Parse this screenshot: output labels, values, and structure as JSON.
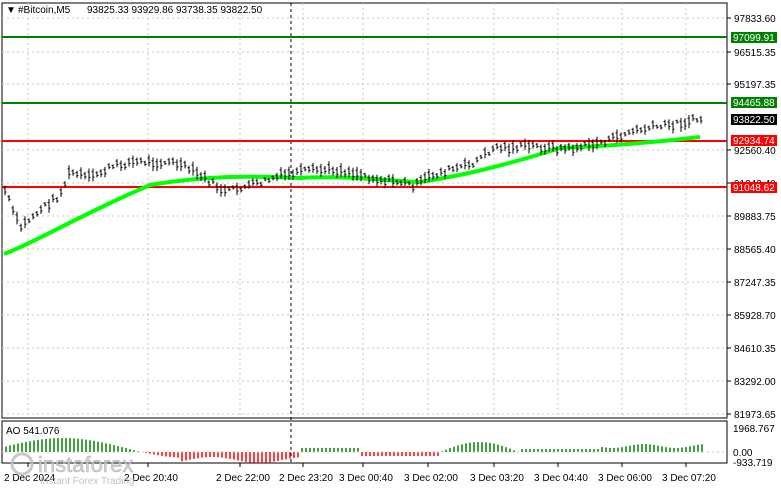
{
  "header": {
    "menu_arrow": "▼",
    "symbol": "#Bitcoin,M5",
    "ohlc": "93825.33 93929.86 93738.35 93822.50"
  },
  "price_axis": {
    "ticks": [
      "97833.60",
      "96515.35",
      "95197.35",
      "92560.40",
      "91242.40",
      "89883.75",
      "88565.40",
      "87247.35",
      "85928.70",
      "84610.35",
      "83292.00",
      "81973.65"
    ]
  },
  "level_labels": {
    "green_top": "97099.91",
    "green_mid": "94465.88",
    "current": "93822.50",
    "red_top": "92934.74",
    "red_bottom": "91048.62"
  },
  "oscillator": {
    "label": "AO 541.076",
    "ticks": [
      "1968.767",
      "0.00",
      "-933.719"
    ]
  },
  "time_axis": {
    "labels": [
      "2 Dec 2024",
      "2 Dec 20:40",
      "2 Dec 22:00",
      "2 Dec 23:20",
      "3 Dec 00:40",
      "3 Dec 02:00",
      "3 Dec 03:20",
      "3 Dec 04:40",
      "3 Dec 06:00",
      "3 Dec 07:20"
    ]
  },
  "watermark": {
    "brand": "instaforex",
    "tagline": "Instant Forex Trading"
  },
  "colors": {
    "green_level": "#008000",
    "red_level": "#ff0000",
    "moving_average": "#00ff00",
    "ao_up": "#008000",
    "ao_down": "#ff0000",
    "grid": "#c0c0c0"
  }
}
